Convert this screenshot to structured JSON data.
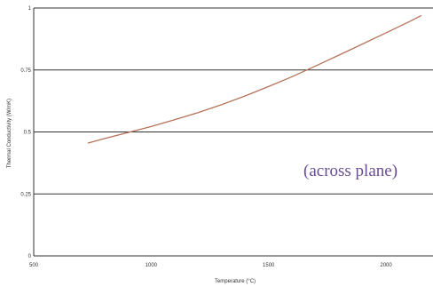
{
  "chart_data": {
    "type": "line",
    "title": "",
    "xlabel": "Temperature (°C)",
    "ylabel": "Thermal Conductivity (W/mK)",
    "xlim": [
      500,
      2200
    ],
    "ylim": [
      0,
      1
    ],
    "x_tick_labels": [
      "500",
      "1000",
      "1500",
      "2000"
    ],
    "x_tick_values": [
      500,
      1000,
      1500,
      2000
    ],
    "y_tick_labels": [
      "0",
      "0.25",
      "0.5",
      "0.75",
      "1"
    ],
    "y_tick_values": [
      0,
      0.25,
      0.5,
      0.75,
      1
    ],
    "grid": "horizontal",
    "annotation": "(across plane)",
    "colors": {
      "line": "#b5735a",
      "grid": "#333333",
      "annotation": "#6a4c93"
    },
    "series": [
      {
        "x": [
          730,
          800,
          900,
          1000,
          1100,
          1200,
          1300,
          1400,
          1500,
          1600,
          1700,
          1800,
          1900,
          2000,
          2100,
          2150
        ],
        "values": [
          0.455,
          0.473,
          0.497,
          0.522,
          0.549,
          0.578,
          0.61,
          0.645,
          0.683,
          0.723,
          0.766,
          0.81,
          0.855,
          0.9,
          0.945,
          0.97
        ]
      }
    ]
  }
}
